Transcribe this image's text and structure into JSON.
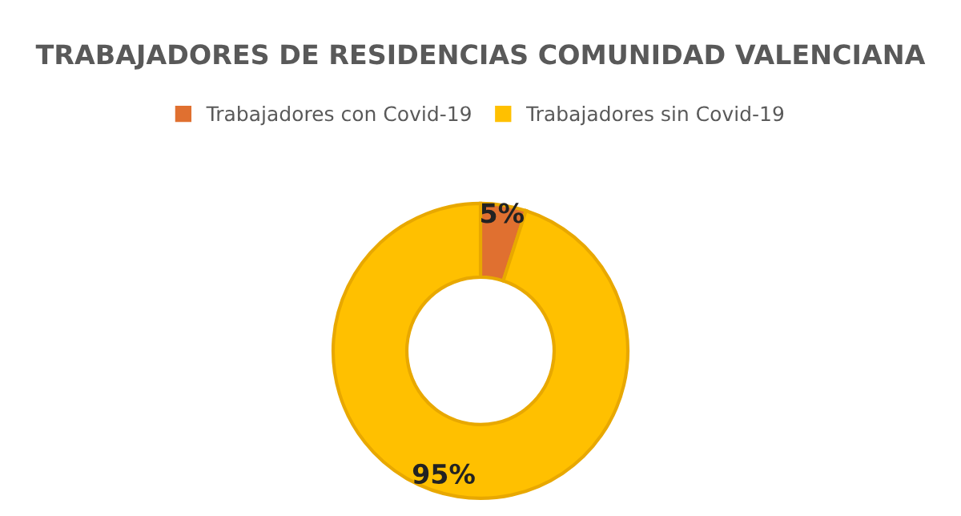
{
  "chart_data": {
    "type": "donut",
    "title": "TRABAJADORES DE RESIDENCIAS COMUNIDAD VALENCIANA",
    "categories": [
      "Trabajadores con Covid-19",
      "Trabajadores sin Covid-19"
    ],
    "values": [
      5,
      95
    ],
    "colors": [
      "#e07030",
      "#ffc000"
    ],
    "value_labels": [
      "5%",
      "95%"
    ],
    "legend": "top"
  }
}
